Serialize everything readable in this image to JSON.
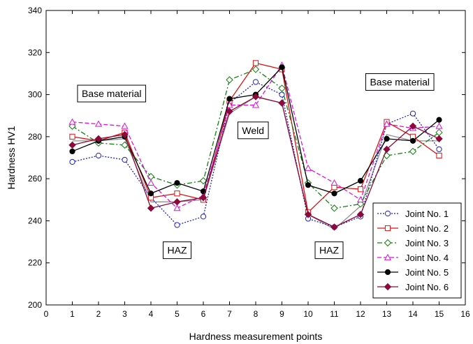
{
  "chart_data": {
    "type": "line",
    "xlabel": "Hardness measurement points",
    "ylabel": "Hardness HV1",
    "xlim": [
      0,
      16
    ],
    "ylim": [
      200,
      340
    ],
    "xticks": [
      0,
      1,
      2,
      3,
      4,
      5,
      6,
      7,
      8,
      9,
      10,
      11,
      12,
      13,
      14,
      15,
      16
    ],
    "yticks": [
      200,
      220,
      240,
      260,
      280,
      300,
      320,
      340
    ],
    "grid": false,
    "legend_position": "bottom-right",
    "x": [
      1,
      2,
      3,
      4,
      5,
      6,
      7,
      8,
      9,
      10,
      11,
      12,
      13,
      14,
      15
    ],
    "series": [
      {
        "name": "Joint No. 1",
        "color": "#1f1fd0",
        "marker": "circle-open",
        "dash": "dotted",
        "values": [
          268,
          271,
          269,
          251,
          238,
          242,
          296,
          306,
          300,
          241,
          237,
          242,
          286,
          291,
          274
        ]
      },
      {
        "name": "Joint No. 2",
        "color": "#e01010",
        "marker": "square-open",
        "dash": "solid",
        "values": [
          280,
          278,
          282,
          251,
          253,
          250,
          297,
          315,
          312,
          244,
          256,
          255,
          287,
          280,
          271
        ]
      },
      {
        "name": "Joint No. 3",
        "color": "#108010",
        "marker": "diamond-open",
        "dash": "dashdot",
        "values": [
          285,
          277,
          276,
          261,
          257,
          259,
          307,
          312,
          303,
          258,
          246,
          248,
          271,
          273,
          282
        ]
      },
      {
        "name": "Joint No. 4",
        "color": "#e010e0",
        "marker": "triangle-open",
        "dash": "dashed",
        "values": [
          287,
          286,
          285,
          258,
          246,
          252,
          295,
          295,
          314,
          265,
          258,
          250,
          286,
          284,
          285
        ]
      },
      {
        "name": "Joint No. 5",
        "color": "#000000",
        "marker": "circle-filled",
        "dash": "solid",
        "values": [
          273,
          278,
          280,
          253,
          258,
          254,
          298,
          300,
          313,
          257,
          253,
          259,
          279,
          278,
          288
        ]
      },
      {
        "name": "Joint No. 6",
        "color": "#8b0a3a",
        "marker": "diamond-filled",
        "dash": "solid",
        "values": [
          276,
          279,
          281,
          246,
          249,
          251,
          292,
          299,
          296,
          243,
          237,
          243,
          274,
          285,
          279
        ]
      }
    ],
    "extra_line": {
      "color": "#909090",
      "values": [
        278,
        278,
        279,
        249,
        249,
        250,
        291,
        299,
        296,
        243,
        236,
        247,
        281,
        278,
        278
      ]
    },
    "annotations": [
      {
        "text": "Base material",
        "x": 2.5,
        "y": 300.5
      },
      {
        "text": "Base material",
        "x": 13.5,
        "y": 306
      },
      {
        "text": "Weld",
        "x": 7.9,
        "y": 283
      },
      {
        "text": "HAZ",
        "x": 5,
        "y": 226
      },
      {
        "text": "HAZ",
        "x": 10.8,
        "y": 226
      }
    ]
  }
}
